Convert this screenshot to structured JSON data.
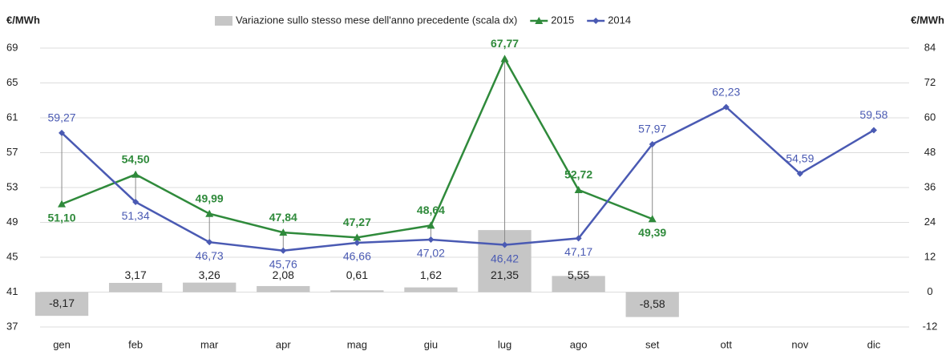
{
  "chart_data": {
    "type": "line",
    "y_label": "€/MWh",
    "y2_label": "€/MWh",
    "categories": [
      "gen",
      "feb",
      "mar",
      "apr",
      "mag",
      "giu",
      "lug",
      "ago",
      "set",
      "ott",
      "nov",
      "dic"
    ],
    "series": [
      {
        "name": "Variazione sullo stesso mese dell'anno precedente (scala dx)",
        "type": "bar",
        "axis": "y2",
        "color": "#c6c6c6",
        "values": [
          -8.17,
          3.17,
          3.26,
          2.08,
          0.61,
          1.62,
          21.35,
          5.55,
          -8.58,
          null,
          null,
          null
        ],
        "value_labels": [
          "-8,17",
          "3,17",
          "3,26",
          "2,08",
          "0,61",
          "1,62",
          "21,35",
          "5,55",
          "-8,58",
          null,
          null,
          null
        ]
      },
      {
        "name": "2015",
        "type": "line",
        "marker": "triangle",
        "color": "#2f8a3b",
        "values": [
          51.1,
          54.5,
          49.99,
          47.84,
          47.27,
          48.64,
          67.77,
          52.72,
          49.39,
          null,
          null,
          null
        ],
        "value_labels": [
          "51,10",
          "54,50",
          "49,99",
          "47,84",
          "47,27",
          "48,64",
          "67,77",
          "52,72",
          "49,39",
          null,
          null,
          null
        ]
      },
      {
        "name": "2014",
        "type": "line",
        "marker": "diamond",
        "color": "#4a5ab3",
        "values": [
          59.27,
          51.34,
          46.73,
          45.76,
          46.66,
          47.02,
          46.42,
          47.17,
          57.97,
          62.23,
          54.59,
          59.58
        ],
        "value_labels": [
          "59,27",
          "51,34",
          "46,73",
          "45,76",
          "46,66",
          "47,02",
          "46,42",
          "47,17",
          "57,97",
          "62,23",
          "54,59",
          "59,58"
        ]
      }
    ],
    "ylim": [
      37,
      69
    ],
    "yticks": [
      37,
      41,
      45,
      49,
      53,
      57,
      61,
      65,
      69
    ],
    "y2lim": [
      -12,
      84
    ],
    "y2ticks": [
      -12,
      0,
      12,
      24,
      36,
      48,
      60,
      72,
      84
    ],
    "grid": true
  }
}
